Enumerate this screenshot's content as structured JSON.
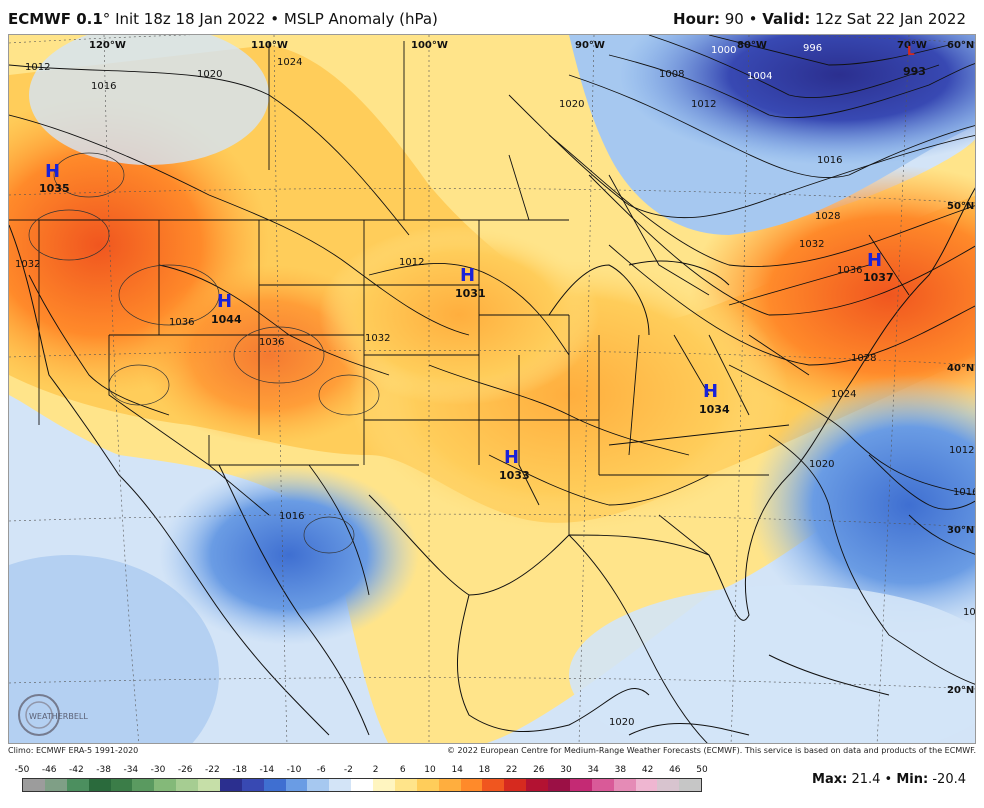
{
  "header": {
    "model": "ECMWF 0.1",
    "deg": "°",
    "init": "Init 18z 18 Jan 2022",
    "product": "MSLP Anomaly (hPa)",
    "hour_label": "Hour:",
    "hour_value": "90",
    "valid_label": "Valid:",
    "valid_value": "12z Sat 22 Jan 2022",
    "bullet": "•"
  },
  "map": {
    "lon_labels": [
      "120°W",
      "110°W",
      "100°W",
      "90°W",
      "80°W",
      "70°W"
    ],
    "lat_labels": [
      "60°N",
      "50°N",
      "40°N",
      "30°N",
      "20°N"
    ],
    "highs": [
      {
        "symbol": "H",
        "value": "1035"
      },
      {
        "symbol": "H",
        "value": "1044"
      },
      {
        "symbol": "H",
        "value": "1031"
      },
      {
        "symbol": "H",
        "value": "1033"
      },
      {
        "symbol": "H",
        "value": "1034"
      },
      {
        "symbol": "H",
        "value": "1037"
      }
    ],
    "lows": [
      {
        "symbol": "L",
        "value": "993"
      }
    ],
    "isobar_labels": [
      "1012",
      "1016",
      "1020",
      "1024",
      "1032",
      "1036",
      "1000",
      "996",
      "1004",
      "1008",
      "1012",
      "1016",
      "1020",
      "1028",
      "1032",
      "1036",
      "1028",
      "1024",
      "1020",
      "1012",
      "1016",
      "1020",
      "1016",
      "1032",
      "1036",
      "1012",
      "1020"
    ],
    "watermark": "WEATHERBELL"
  },
  "credits": {
    "left": "Climo: ECMWF ERA-5 1991-2020",
    "right": "© 2022 European Centre for Medium-Range Weather Forecasts (ECMWF). This service is based on data and products of the ECMWF."
  },
  "scale": {
    "ticks": [
      "-50",
      "-46",
      "-42",
      "-38",
      "-34",
      "-30",
      "-26",
      "-22",
      "-18",
      "-14",
      "-10",
      "-6",
      "-2",
      "2",
      "6",
      "10",
      "14",
      "18",
      "22",
      "26",
      "30",
      "34",
      "38",
      "42",
      "46",
      "50"
    ],
    "colors": [
      "#9c9c9c",
      "#7f9f86",
      "#4c8f5f",
      "#2a6a3c",
      "#3b7d48",
      "#5a9a60",
      "#84b979",
      "#a6cd92",
      "#c6dfa8",
      "#2b2f8f",
      "#3849b3",
      "#3f6fd1",
      "#6a9ce4",
      "#a6c8f0",
      "#d3e4f7",
      "#ffffff",
      "#fff5c0",
      "#ffe48a",
      "#ffcd5a",
      "#ffae3e",
      "#ff8a2a",
      "#f0561f",
      "#d62a1f",
      "#b31232",
      "#9b1045",
      "#c42a74",
      "#d95a98",
      "#e58bb6",
      "#efb6d1",
      "#d8c4cf",
      "#c6c6c6"
    ]
  },
  "stats": {
    "max_label": "Max:",
    "max_value": "21.4",
    "min_label": "Min:",
    "min_value": "-20.4",
    "bullet": "•"
  }
}
